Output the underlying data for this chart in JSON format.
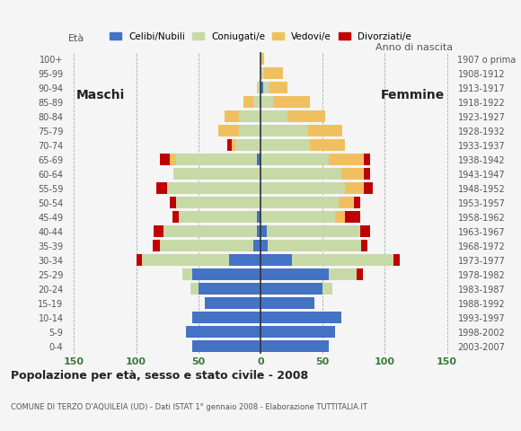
{
  "age_groups": [
    "0-4",
    "5-9",
    "10-14",
    "15-19",
    "20-24",
    "25-29",
    "30-34",
    "35-39",
    "40-44",
    "45-49",
    "50-54",
    "55-59",
    "60-64",
    "65-69",
    "70-74",
    "75-79",
    "80-84",
    "85-89",
    "90-94",
    "95-99",
    "100+"
  ],
  "birth_years": [
    "2003-2007",
    "1998-2002",
    "1993-1997",
    "1988-1992",
    "1983-1987",
    "1978-1982",
    "1973-1977",
    "1968-1972",
    "1963-1967",
    "1958-1962",
    "1953-1957",
    "1948-1952",
    "1943-1947",
    "1938-1942",
    "1933-1937",
    "1928-1932",
    "1923-1927",
    "1918-1922",
    "1913-1917",
    "1908-1912",
    "1907 o prima"
  ],
  "males": {
    "celibi": [
      55,
      60,
      55,
      45,
      50,
      55,
      25,
      6,
      3,
      3,
      0,
      0,
      0,
      3,
      0,
      0,
      0,
      0,
      0,
      0,
      0
    ],
    "coniugati": [
      0,
      0,
      0,
      0,
      6,
      8,
      70,
      75,
      75,
      63,
      68,
      75,
      70,
      65,
      20,
      17,
      17,
      6,
      3,
      0,
      0
    ],
    "vedovi": [
      0,
      0,
      0,
      0,
      0,
      0,
      0,
      0,
      0,
      0,
      0,
      0,
      0,
      5,
      3,
      17,
      12,
      8,
      0,
      0,
      0
    ],
    "divorziati": [
      0,
      0,
      0,
      0,
      0,
      0,
      5,
      6,
      8,
      5,
      5,
      9,
      0,
      8,
      4,
      0,
      0,
      0,
      0,
      0,
      0
    ]
  },
  "females": {
    "celibi": [
      55,
      60,
      65,
      43,
      50,
      55,
      25,
      6,
      5,
      0,
      0,
      0,
      0,
      0,
      0,
      0,
      0,
      0,
      2,
      0,
      0
    ],
    "coniugati": [
      0,
      0,
      0,
      0,
      8,
      22,
      82,
      75,
      75,
      60,
      63,
      68,
      65,
      55,
      40,
      38,
      22,
      10,
      5,
      3,
      0
    ],
    "vedovi": [
      0,
      0,
      0,
      0,
      0,
      0,
      0,
      0,
      0,
      8,
      12,
      15,
      18,
      28,
      28,
      28,
      30,
      30,
      15,
      15,
      3
    ],
    "divorziati": [
      0,
      0,
      0,
      0,
      0,
      5,
      5,
      5,
      8,
      12,
      5,
      7,
      5,
      5,
      0,
      0,
      0,
      0,
      0,
      0,
      0
    ]
  },
  "colors": {
    "celibi": "#4472c4",
    "coniugati": "#c8d9a8",
    "vedovi": "#f0c060",
    "divorziati": "#c00000"
  },
  "xlim": 155,
  "title": "Popolazione per età, sesso e stato civile - 2008",
  "subtitle": "COMUNE DI TERZO D'AQUILEIA (UD) - Dati ISTAT 1° gennaio 2008 - Elaborazione TUTTITALIA.IT",
  "ylabel_left": "Età",
  "ylabel_right": "Anno di nascita",
  "label_maschi": "Maschi",
  "label_femmine": "Femmine",
  "legend_labels": [
    "Celibi/Nubili",
    "Coniugati/e",
    "Vedovi/e",
    "Divorziati/e"
  ],
  "background_color": "#f5f5f5",
  "grid_color": "#aaaaaa"
}
